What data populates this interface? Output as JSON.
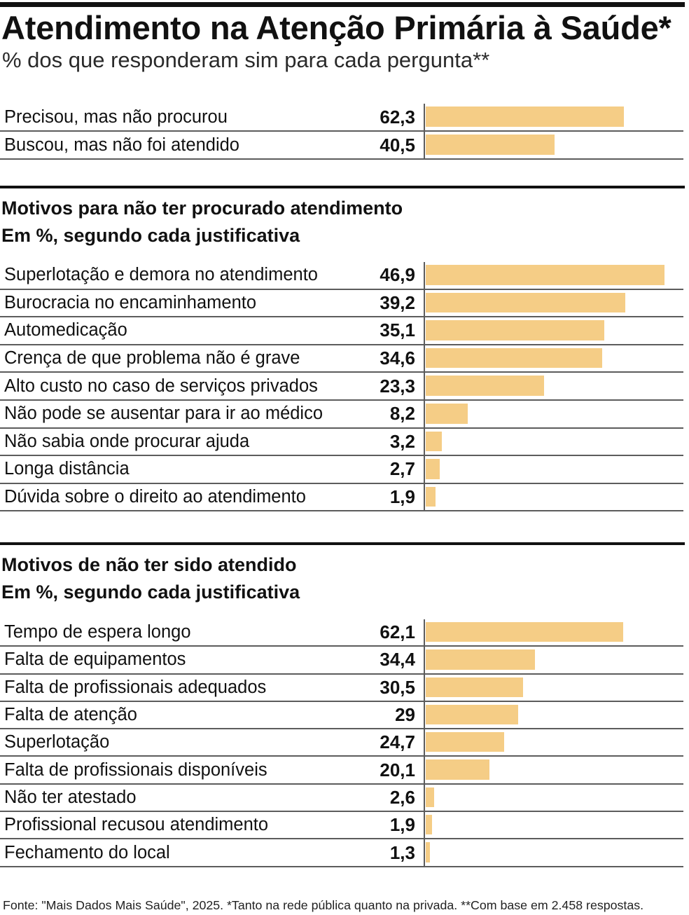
{
  "header": {
    "title": "Atendimento na Atenção Primária à Saúde*",
    "subtitle": "% dos que responderam sim para cada pergunta**"
  },
  "footer": "Fonte: \"Mais Dados Mais Saúde\", 2025. *Tanto na rede pública quanto na privada. **Com base em 2.458 respostas.",
  "colors": {
    "bar": "#f5cd86",
    "gridline": "#5c5c5c",
    "rule": "#111111"
  },
  "chart_data": [
    {
      "type": "bar",
      "categories": [
        "Precisou, mas não procurou",
        "Buscou, mas não foi atendido"
      ],
      "values": [
        62.3,
        40.5
      ],
      "value_labels": [
        "62,3",
        "40,5"
      ],
      "xlim": [
        0,
        81.5
      ]
    },
    {
      "type": "bar",
      "title": "Motivos para não ter procurado atendimento",
      "subtitle": "Em %, segundo cada justificativa",
      "categories": [
        "Superlotação e demora no atendimento",
        "Burocracia no encaminhamento",
        "Automedicação",
        "Crença de que problema não é grave",
        "Alto custo no caso de serviços privados",
        "Não pode se ausentar para ir ao médico",
        "Não sabia onde procurar ajuda",
        "Longa distância",
        "Dúvida sobre o direito ao atendimento"
      ],
      "values": [
        46.9,
        39.2,
        35.1,
        34.6,
        23.3,
        8.2,
        3.2,
        2.7,
        1.9
      ],
      "value_labels": [
        "46,9",
        "39,2",
        "35,1",
        "34,6",
        "23,3",
        "8,2",
        "3,2",
        "2,7",
        "1,9"
      ],
      "xlim": [
        0,
        50.9
      ]
    },
    {
      "type": "bar",
      "title": "Motivos de não ter sido atendido",
      "subtitle": "Em %, segundo cada justificativa",
      "categories": [
        "Tempo de espera longo",
        "Falta de equipamentos",
        "Falta de profissionais adequados",
        "Falta de atenção",
        "Superlotação",
        "Falta de profissionais disponíveis",
        "Não ter atestado",
        "Profissional recusou atendimento",
        "Fechamento do local"
      ],
      "values": [
        62.1,
        34.4,
        30.5,
        29,
        24.7,
        20.1,
        2.6,
        1.9,
        1.3
      ],
      "value_labels": [
        "62,1",
        "34,4",
        "30,5",
        "29",
        "24,7",
        "20,1",
        "2,6",
        "1,9",
        "1,3"
      ],
      "xlim": [
        0,
        81.5
      ]
    }
  ]
}
